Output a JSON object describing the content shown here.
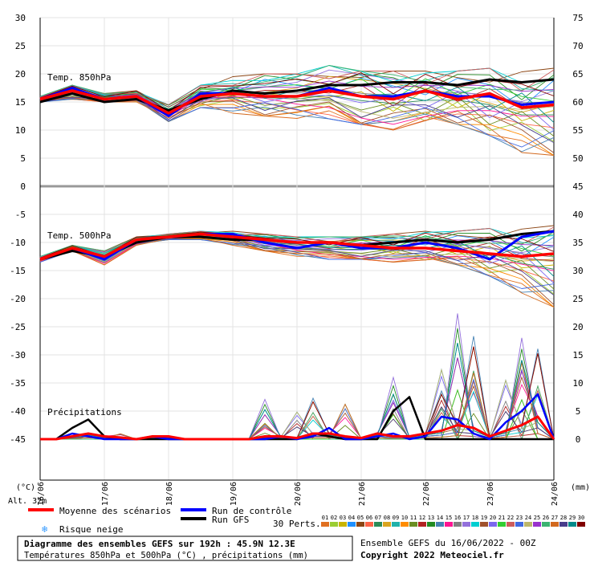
{
  "chart_data": {
    "type": "line",
    "subtitle_units": "Températures 850hPa et 500hPa (°C) , précipitations (mm)",
    "title": "Diagramme des ensembles GEFS sur 192h : 45.9N 12.3E",
    "x_ticks": [
      "16/06",
      "17/06",
      "18/06",
      "19/06",
      "20/06",
      "21/06",
      "22/06",
      "23/06",
      "24/06"
    ],
    "left_axis": {
      "label": "(°C)",
      "ticks": [
        30,
        25,
        20,
        15,
        10,
        5,
        0,
        -5,
        -10,
        -15,
        -20,
        -25,
        -30,
        -35,
        -40,
        -45
      ],
      "ylim": [
        -45,
        30
      ]
    },
    "right_axis": {
      "label": "(mm)",
      "ticks": [
        75,
        70,
        65,
        60,
        55,
        50,
        45,
        40,
        35,
        30,
        25,
        20,
        15,
        10,
        5,
        0
      ],
      "ylim": [
        0,
        75
      ]
    },
    "altitude": "Alt. 32m",
    "panel_labels": {
      "t850": "Temp. 850hPa",
      "t500": "Temp. 500hPa",
      "precip": "Précipitations"
    },
    "legend": {
      "mean": "Moyenne des scénarios",
      "control": "Run de contrôle",
      "gfs": "Run GFS",
      "snow": "Risque neige",
      "perts_label": "30 Perts.",
      "pert_numbers": [
        "01",
        "02",
        "03",
        "04",
        "05",
        "06",
        "07",
        "08",
        "09",
        "10",
        "11",
        "12",
        "13",
        "14",
        "15",
        "16",
        "17",
        "18",
        "19",
        "20",
        "21",
        "22",
        "23",
        "24",
        "25",
        "26",
        "27",
        "28",
        "29",
        "30"
      ],
      "pert_colors": [
        "#e07020",
        "#9acd32",
        "#c8b400",
        "#1e90ff",
        "#8b4513",
        "#ff6347",
        "#2e8b57",
        "#daa520",
        "#20b2aa",
        "#ff8c00",
        "#6b8e23",
        "#b22222",
        "#228b22",
        "#4682b4",
        "#ff1493",
        "#808080",
        "#9370db",
        "#00ced1",
        "#a0522d",
        "#7b68ee",
        "#32cd32",
        "#cd5c5c",
        "#4169e1",
        "#bdb76b",
        "#9932cc",
        "#3cb371",
        "#d2691e",
        "#483d8b",
        "#008b8b",
        "#800000"
      ]
    },
    "series_temp850": {
      "mean": [
        15.5,
        17,
        15.5,
        16,
        13,
        16,
        16.5,
        16,
        16,
        17,
        16,
        15.5,
        17,
        15.5,
        16.5,
        14,
        14.5
      ],
      "control": [
        15.5,
        17.5,
        15.5,
        16,
        12.5,
        16.5,
        16.5,
        16,
        16,
        17.5,
        16,
        16,
        17,
        16,
        16,
        14.5,
        15
      ],
      "gfs": [
        15,
        16.5,
        15,
        15.5,
        13.5,
        15.5,
        17,
        16.5,
        17,
        18,
        18,
        18.5,
        18.5,
        18,
        19,
        18.5,
        19
      ],
      "spread_hi": [
        16,
        18,
        16.5,
        17,
        14.5,
        18,
        19.5,
        20,
        20,
        21.5,
        20.5,
        20.5,
        20.5,
        20.5,
        21,
        20.5,
        21
      ],
      "spread_lo": [
        15,
        15.5,
        15,
        15,
        11.5,
        14,
        13,
        12.5,
        12,
        12,
        11,
        10,
        11,
        11,
        9,
        6,
        5.5
      ]
    },
    "series_temp500": {
      "mean": [
        -13,
        -11,
        -12.5,
        -9.5,
        -9,
        -8.5,
        -9,
        -9.5,
        -10,
        -10,
        -10.5,
        -11,
        -11,
        -11.5,
        -12,
        -12.5,
        -12
      ],
      "control": [
        -13,
        -11,
        -13,
        -9.5,
        -9,
        -8.5,
        -8.5,
        -10,
        -11,
        -10,
        -11,
        -11,
        -10,
        -11,
        -13,
        -9,
        -8
      ],
      "gfs": [
        -13,
        -11.5,
        -12.5,
        -10,
        -9,
        -9,
        -9.5,
        -9.5,
        -10,
        -10,
        -10.5,
        -10,
        -9.5,
        -10,
        -9.5,
        -8.5,
        -8
      ],
      "spread_hi": [
        -12.5,
        -10.5,
        -11.5,
        -9,
        -8.5,
        -8,
        -8,
        -8.5,
        -9,
        -9,
        -9,
        -8.5,
        -8,
        -8,
        -7.5,
        -7.5,
        -7
      ],
      "spread_lo": [
        -13.5,
        -11.5,
        -14,
        -10.5,
        -9.5,
        -9.5,
        -10.5,
        -11.5,
        -12.5,
        -13,
        -13,
        -13.5,
        -13.5,
        -14,
        -16,
        -19,
        -21.5
      ]
    },
    "series_precip_mm": {
      "x_steps": 33,
      "mean": [
        0,
        0,
        0.5,
        1,
        0.5,
        0.3,
        0,
        0.5,
        0.5,
        0,
        0,
        0,
        0,
        0,
        0.5,
        0.5,
        0.2,
        1,
        1,
        0.5,
        0.2,
        1,
        0.5,
        0.5,
        1,
        1.5,
        2.5,
        2,
        0.5,
        1.5,
        2.5,
        4,
        0
      ],
      "control": [
        0,
        0,
        1,
        0.5,
        0,
        0,
        0,
        0.5,
        0,
        0,
        0,
        0,
        0,
        0,
        0,
        0.5,
        0,
        0.5,
        2,
        0,
        0,
        0.5,
        1,
        0,
        0.5,
        4,
        3.5,
        1,
        0,
        3,
        5,
        8,
        0
      ],
      "gfs": [
        0,
        0,
        2,
        3.5,
        0.5,
        0,
        0,
        0,
        0,
        0,
        0,
        0,
        0,
        0,
        0,
        0,
        0,
        1,
        0.5,
        0,
        0,
        0,
        5,
        7.5,
        0,
        0,
        0,
        0,
        0,
        0,
        0,
        0,
        0
      ],
      "spike_series": [
        [
          0,
          0,
          0,
          0,
          0,
          0,
          0,
          0,
          0,
          0,
          0,
          0,
          0,
          0,
          8,
          0,
          0,
          0,
          0,
          0,
          0,
          0,
          12.5,
          0,
          0,
          0,
          25,
          0,
          0,
          0,
          20,
          0,
          0
        ],
        [
          0,
          0,
          0,
          0,
          0,
          0,
          0,
          0,
          0,
          0,
          0,
          0,
          0,
          0,
          0,
          0,
          0,
          7,
          0,
          0,
          0,
          0,
          0,
          0,
          0,
          8,
          0,
          18,
          0,
          0,
          0,
          14,
          0
        ],
        [
          0,
          0,
          0,
          0,
          0,
          1,
          0,
          0,
          0,
          0,
          0,
          0,
          0,
          0,
          3,
          0,
          0,
          0,
          0,
          7,
          0,
          0,
          0,
          0,
          0,
          0,
          0,
          13,
          0,
          0,
          15,
          0,
          0
        ],
        [
          0,
          0,
          0,
          0,
          0,
          0,
          0,
          0,
          0,
          0,
          0,
          0,
          0,
          0,
          0,
          0,
          5,
          0,
          0,
          0,
          0,
          0,
          8,
          0,
          0,
          12,
          0,
          0,
          0,
          10,
          0,
          0,
          0
        ]
      ]
    }
  },
  "footer": {
    "info": "Ensemble GEFS du 16/06/2022 - 00Z",
    "copyright": "Copyright 2022 Meteociel.fr"
  }
}
